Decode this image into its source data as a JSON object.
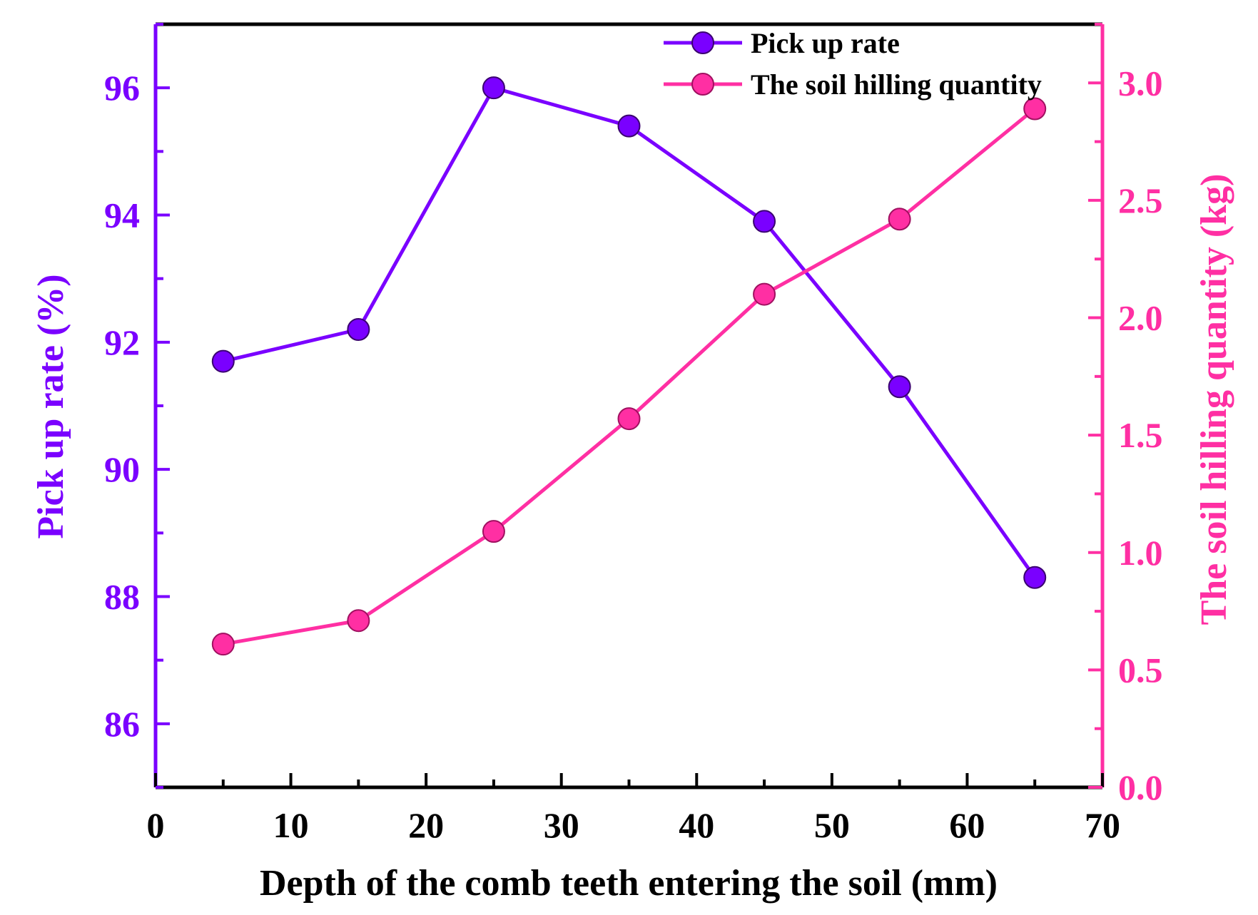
{
  "chart_data": {
    "type": "line",
    "xlabel": "Depth of the comb teeth entering the soil (mm)",
    "ylabel_left": "Pick up rate (%)",
    "ylabel_right": "The soil hilling quantity (kg)",
    "xlim": [
      0,
      70
    ],
    "ylim_left": [
      85,
      97
    ],
    "ylim_right": [
      0,
      3.25
    ],
    "x_ticks": [
      "0",
      "10",
      "20",
      "30",
      "40",
      "50",
      "60",
      "70"
    ],
    "y_left_ticks": [
      "86",
      "88",
      "90",
      "92",
      "94",
      "96"
    ],
    "y_right_ticks": [
      "0.0",
      "0.5",
      "1.0",
      "1.5",
      "2.0",
      "2.5",
      "3.0"
    ],
    "x": [
      5,
      15,
      25,
      35,
      45,
      55,
      65
    ],
    "series": [
      {
        "name": "Pick up rate",
        "axis": "left",
        "color": "#7a00ff",
        "values": [
          91.7,
          92.2,
          96.0,
          95.4,
          93.9,
          91.3,
          88.3
        ]
      },
      {
        "name": "The soil hilling quantity",
        "axis": "right",
        "color": "#ff2fa3",
        "values": [
          0.61,
          0.71,
          1.09,
          1.57,
          2.1,
          2.42,
          2.89
        ]
      }
    ],
    "legend_position": "top-right"
  }
}
